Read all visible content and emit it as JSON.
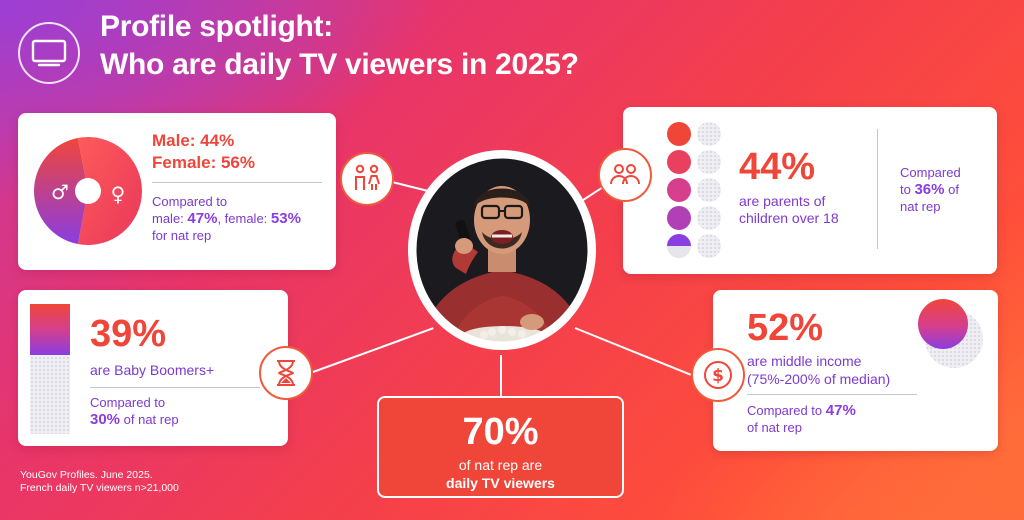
{
  "header": {
    "title_line1": "Profile spotlight:",
    "title_line2": "Who are daily TV viewers in 2025?",
    "icon": "tv-icon"
  },
  "gender_card": {
    "male": "Male: 44%",
    "female": "Female: 56%",
    "compared_prefix": "Compared to",
    "compared_male_label": "male: ",
    "compared_male_value": "47%",
    "compared_female_label": ", female: ",
    "compared_female_value": "53%",
    "compared_suffix": "for nat rep",
    "male_share": 0.44,
    "female_share": 0.56,
    "icons": [
      "male-symbol-icon",
      "female-symbol-icon",
      "people-gender-icon"
    ]
  },
  "parents_card": {
    "value": "44%",
    "desc_line1": "are parents of",
    "desc_line2": "children over 18",
    "compared_line1": "Compared",
    "compared_to": "to ",
    "compared_value": "36%",
    "compared_of": " of",
    "compared_line3": "nat rep",
    "icon": "parents-icon"
  },
  "boomers_card": {
    "value": "39%",
    "desc": "are Baby Boomers+",
    "compared_prefix": "Compared to",
    "compared_value": "30%",
    "compared_suffix": " of nat rep",
    "fill_share": 0.39,
    "icon": "hourglass-icon"
  },
  "income_card": {
    "value": "52%",
    "desc_line1": "are middle income",
    "desc_line2": "(75%-200% of median)",
    "compared_prefix": "Compared to ",
    "compared_value": "47%",
    "compared_suffix": "of nat rep",
    "icon": "dollar-icon"
  },
  "center_card": {
    "value": "70%",
    "line1": "of nat rep are",
    "line2": "daily TV viewers"
  },
  "footnote": {
    "line1": "YouGov Profiles. June 2025.",
    "line2": "French daily TV viewers n>21,000"
  },
  "colors": {
    "accent_red": "#f0463a",
    "accent_purple": "#8a3de0"
  }
}
